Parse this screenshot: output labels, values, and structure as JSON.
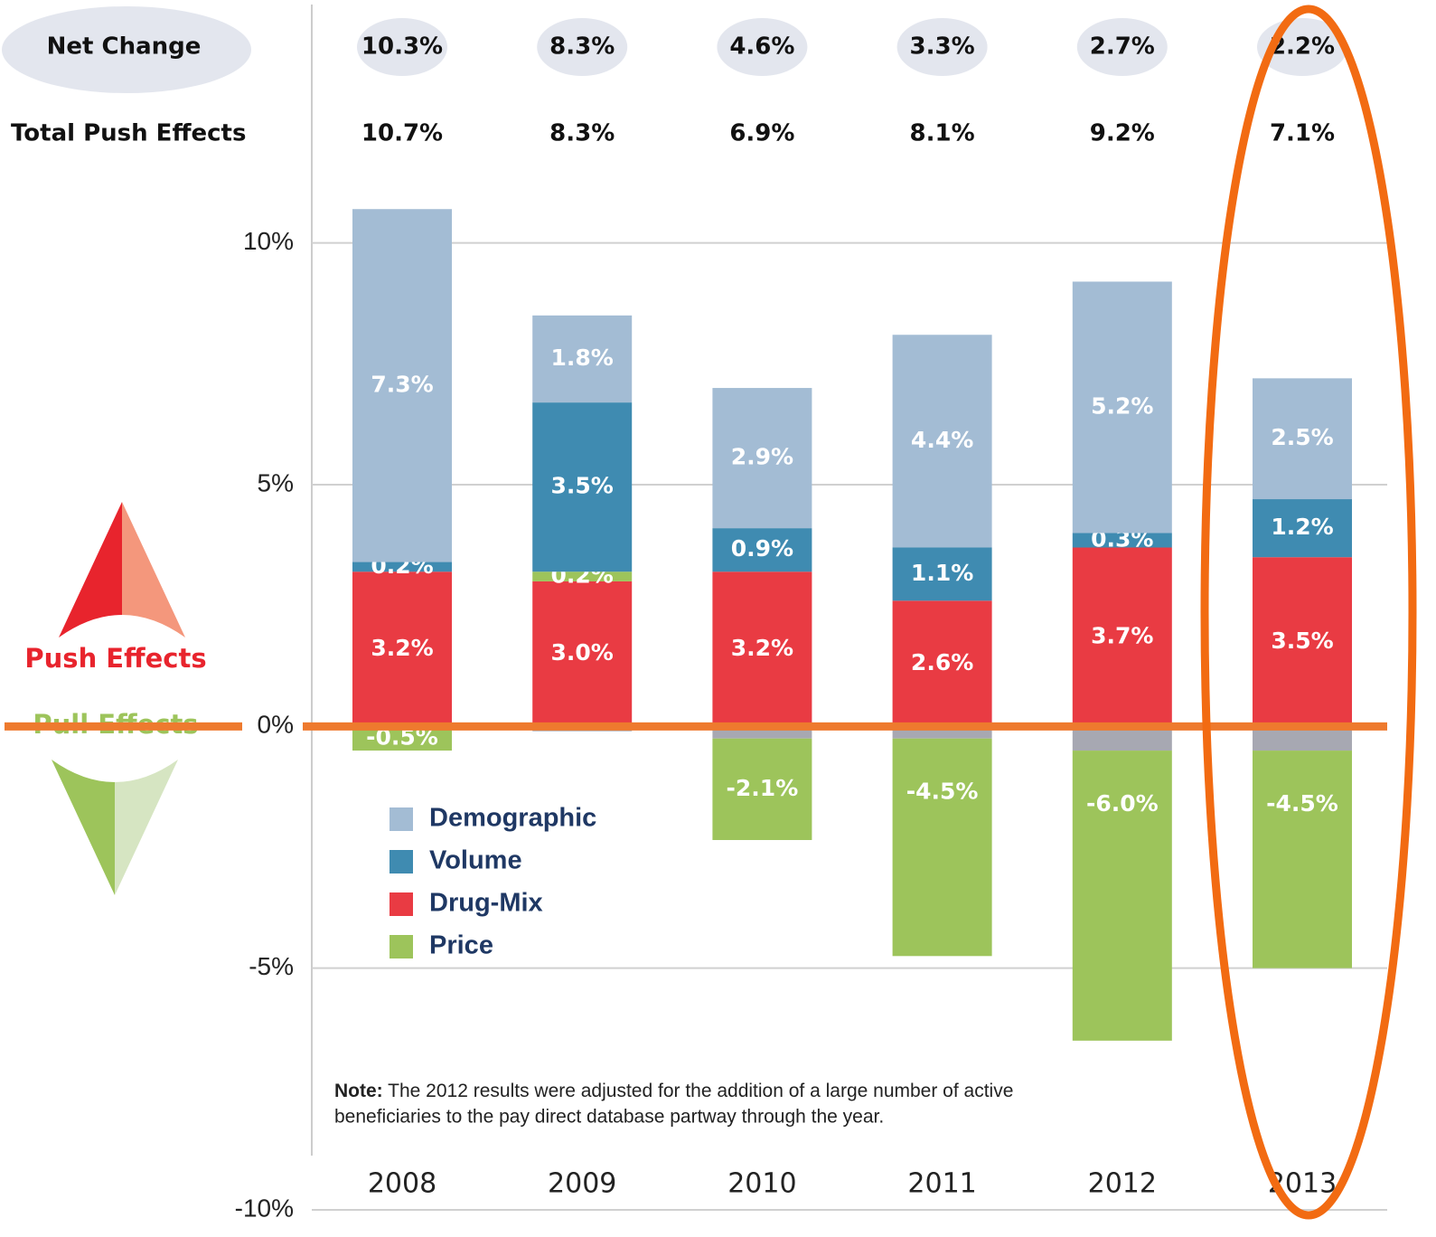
{
  "chart_data": {
    "type": "stacked_bar",
    "categories": [
      "2008",
      "2009",
      "2010",
      "2011",
      "2012",
      "2013"
    ],
    "series": [
      {
        "name": "Demographic",
        "color": "#a3bcd4",
        "values": [
          7.3,
          1.8,
          2.9,
          4.4,
          5.2,
          2.5
        ],
        "value_labels": [
          "7.3%",
          "1.8%",
          "2.9%",
          "4.4%",
          "5.2%",
          "2.5%"
        ]
      },
      {
        "name": "Volume",
        "color": "#3f8bb1",
        "values": [
          0.2,
          3.5,
          0.9,
          1.1,
          0.3,
          1.2
        ],
        "value_labels": [
          "0.2%",
          "3.5%",
          "0.9%",
          "1.1%",
          "0.3%",
          "1.2%"
        ]
      },
      {
        "name": "Drug-Mix",
        "color": "#e93b43",
        "values": [
          3.2,
          3.0,
          3.2,
          2.6,
          3.7,
          3.5
        ],
        "value_labels": [
          "3.2%",
          "3.0%",
          "3.2%",
          "2.6%",
          "3.7%",
          "3.5%"
        ]
      },
      {
        "name": "Price",
        "color": "#9dc45b",
        "values": [
          -0.5,
          0.2,
          -2.1,
          -4.5,
          -6.0,
          -4.5
        ],
        "value_labels": [
          "-0.5%",
          "0.2%",
          "-2.1%",
          "-4.5%",
          "-6.0%",
          "-4.5%"
        ]
      },
      {
        "color": "#a7a8b2",
        "values": [
          0,
          -0.1,
          -0.25,
          -0.25,
          -0.5,
          -0.5
        ]
      }
    ],
    "ylim": [
      -10,
      12.5
    ],
    "yticks": [
      {
        "value": -10,
        "label": "-10%"
      },
      {
        "value": -5,
        "label": "-5%"
      },
      {
        "value": 0,
        "label": "0%"
      },
      {
        "value": 5,
        "label": "5%"
      },
      {
        "value": 10,
        "label": "10%"
      }
    ],
    "grid": true,
    "rows": [
      {
        "label": "Net Change",
        "values": [
          10.3,
          8.3,
          4.6,
          3.3,
          2.7,
          2.2
        ],
        "value_labels": [
          "10.3%",
          "8.3%",
          "4.6%",
          "3.3%",
          "2.7%",
          "2.2%"
        ]
      },
      {
        "label": "Total Push Effects",
        "values": [
          10.7,
          8.3,
          6.9,
          8.1,
          9.2,
          7.1
        ],
        "value_labels": [
          "10.7%",
          "8.3%",
          "6.9%",
          "8.1%",
          "9.2%",
          "7.1%"
        ]
      }
    ],
    "push_label": "Push Effects",
    "pull_label": "Pull Effects",
    "note_title": "Note:",
    "note_lines": [
      "The 2012 results were adjusted for the addition of a large number of active",
      "beneficiaries to the pay direct database partway through the year."
    ]
  }
}
